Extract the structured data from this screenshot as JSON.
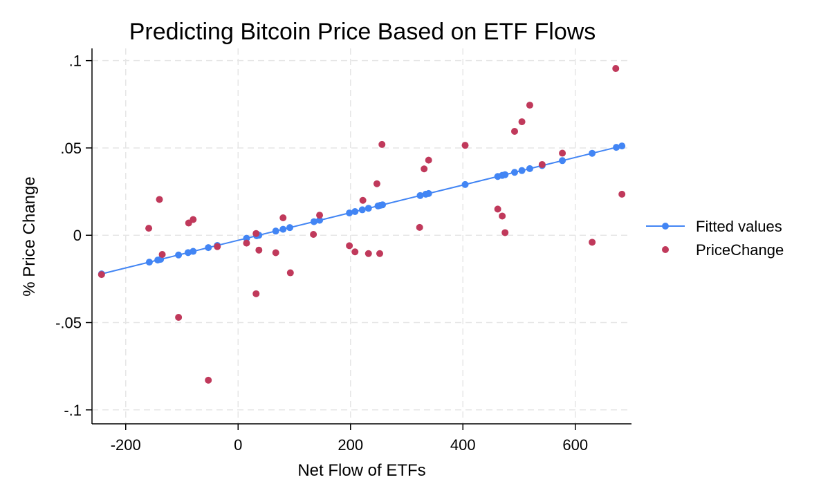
{
  "chart_data": {
    "type": "scatter",
    "title": "Predicting Bitcoin Price Based on ETF Flows",
    "xlabel": "Net Flow of ETFs",
    "ylabel": "% Price Change",
    "xlim": [
      -260,
      700
    ],
    "ylim": [
      -0.108,
      0.107
    ],
    "xticks": [
      -200,
      0,
      200,
      400,
      600
    ],
    "xtick_labels": [
      "-200",
      "0",
      "200",
      "400",
      "600"
    ],
    "yticks": [
      -0.1,
      -0.05,
      0,
      0.05,
      0.1
    ],
    "ytick_labels": [
      "-.1",
      "-.05",
      "0",
      ".05",
      ".1"
    ],
    "grid": true,
    "legend_position": "right",
    "fit": {
      "intercept": -0.0029,
      "slope": 7.91e-05
    },
    "series": [
      {
        "name": "Fitted values",
        "kind": "line-with-markers",
        "color": "#4285F4",
        "x": [
          -243,
          -158,
          -143,
          -138,
          -106,
          -89,
          -80,
          -53,
          -37,
          15,
          33,
          37,
          67,
          80,
          92,
          135,
          145,
          198,
          208,
          221,
          232,
          249,
          253,
          257,
          324,
          334,
          339,
          404,
          462,
          470,
          475,
          492,
          505,
          519,
          541,
          577,
          630,
          673,
          683
        ]
      },
      {
        "name": "PriceChange",
        "kind": "scatter",
        "color": "#C0395B",
        "points": [
          [
            -243,
            -0.0225
          ],
          [
            -159,
            0.004
          ],
          [
            -140,
            0.0205
          ],
          [
            -135,
            -0.011
          ],
          [
            -106,
            -0.047
          ],
          [
            -88,
            0.007
          ],
          [
            -80,
            0.009
          ],
          [
            -53,
            -0.083
          ],
          [
            -37,
            -0.0065
          ],
          [
            15,
            -0.0045
          ],
          [
            32,
            0.001
          ],
          [
            32,
            -0.0335
          ],
          [
            37,
            -0.0085
          ],
          [
            67,
            -0.01
          ],
          [
            80,
            0.01
          ],
          [
            93,
            -0.0215
          ],
          [
            134,
            0.0005
          ],
          [
            145,
            0.0115
          ],
          [
            198,
            -0.006
          ],
          [
            208,
            -0.0095
          ],
          [
            222,
            0.02
          ],
          [
            232,
            -0.0105
          ],
          [
            247,
            0.0295
          ],
          [
            252,
            -0.0105
          ],
          [
            256,
            0.052
          ],
          [
            323,
            0.0045
          ],
          [
            331,
            0.038
          ],
          [
            339,
            0.043
          ],
          [
            404,
            0.0515
          ],
          [
            462,
            0.015
          ],
          [
            470,
            0.011
          ],
          [
            475,
            0.0015
          ],
          [
            492,
            0.0595
          ],
          [
            505,
            0.065
          ],
          [
            519,
            0.0745
          ],
          [
            541,
            0.0405
          ],
          [
            577,
            0.047
          ],
          [
            630,
            -0.004
          ],
          [
            672,
            0.0955
          ],
          [
            683,
            0.0235
          ]
        ]
      }
    ]
  }
}
